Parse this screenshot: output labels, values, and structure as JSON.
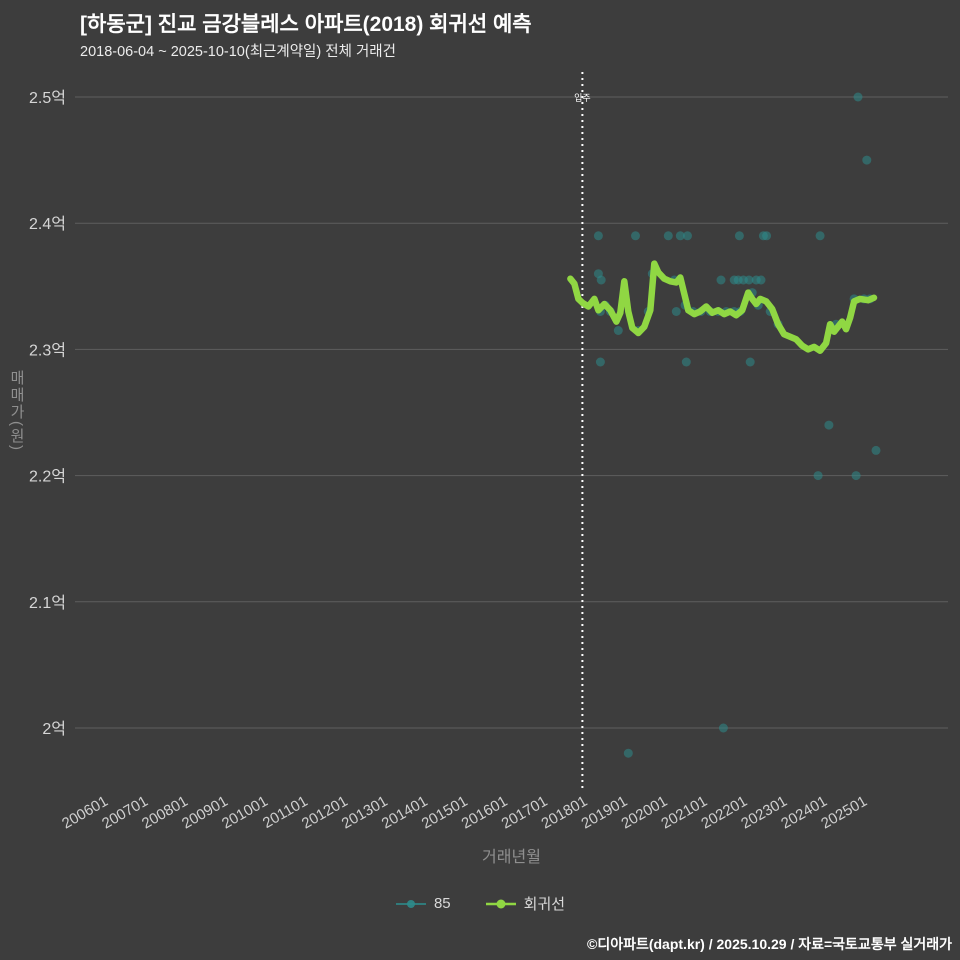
{
  "header": {
    "title": "[하동군] 진교 금강블레스 아파트(2018) 회귀선 예측",
    "subtitle": "2018-06-04 ~ 2025-10-10(최근계약일) 전체 거래건"
  },
  "footer": {
    "copyright": "©디아파트(dapt.kr) / 2025.10.29 / 자료=국토교통부 실거래가"
  },
  "chart_data": {
    "type": "scatter",
    "title": "[하동군] 진교 금강블레스 아파트(2018) 회귀선 예측",
    "subtitle": "2018-06-04 ~ 2025-10-10(최근계약일) 전체 거래건",
    "xlabel": "거래년월",
    "ylabel": "매매가(원)",
    "grid": true,
    "legend_position": "bottom",
    "ylim": [
      1.95,
      2.52
    ],
    "xlim_years": [
      2005.45,
      2027.3
    ],
    "y_ticks": [
      {
        "label": "2.5억",
        "value": 2.5
      },
      {
        "label": "2.4억",
        "value": 2.4
      },
      {
        "label": "2.3억",
        "value": 2.3
      },
      {
        "label": "2.2억",
        "value": 2.2
      },
      {
        "label": "2.1억",
        "value": 2.1
      },
      {
        "label": "2억",
        "value": 2.0
      }
    ],
    "x_ticks": [
      "200601",
      "200701",
      "200801",
      "200901",
      "201001",
      "201101",
      "201201",
      "201301",
      "201401",
      "201501",
      "201601",
      "201701",
      "201801",
      "201901",
      "202001",
      "202101",
      "202201",
      "202301",
      "202401",
      "202501"
    ],
    "marker_line": {
      "label": "입주",
      "year": 2018.15,
      "style": "dotted-vertical",
      "color": "#ffffff"
    },
    "series": [
      {
        "name": "85",
        "type": "scatter",
        "color": "#2e8b8b",
        "opacity": 0.55,
        "points": [
          [
            2025.05,
            2.5
          ],
          [
            2025.27,
            2.45
          ],
          [
            2018.55,
            2.39
          ],
          [
            2019.48,
            2.39
          ],
          [
            2020.3,
            2.39
          ],
          [
            2020.6,
            2.39
          ],
          [
            2020.78,
            2.39
          ],
          [
            2022.08,
            2.39
          ],
          [
            2022.68,
            2.39
          ],
          [
            2022.76,
            2.39
          ],
          [
            2024.1,
            2.39
          ],
          [
            2018.55,
            2.36
          ],
          [
            2018.62,
            2.355
          ],
          [
            2019.9,
            2.36
          ],
          [
            2020.45,
            2.355
          ],
          [
            2021.62,
            2.355
          ],
          [
            2021.95,
            2.355
          ],
          [
            2022.05,
            2.355
          ],
          [
            2022.18,
            2.355
          ],
          [
            2022.32,
            2.355
          ],
          [
            2022.5,
            2.355
          ],
          [
            2022.62,
            2.355
          ],
          [
            2022.4,
            2.345
          ],
          [
            2024.95,
            2.34
          ],
          [
            2025.2,
            2.34
          ],
          [
            2025.35,
            2.34
          ],
          [
            2018.6,
            2.33
          ],
          [
            2018.72,
            2.335
          ],
          [
            2018.85,
            2.33
          ],
          [
            2019.05,
            2.315
          ],
          [
            2019.55,
            2.315
          ],
          [
            2019.8,
            2.33
          ],
          [
            2020.5,
            2.33
          ],
          [
            2020.72,
            2.335
          ],
          [
            2020.92,
            2.33
          ],
          [
            2021.12,
            2.33
          ],
          [
            2021.35,
            2.33
          ],
          [
            2021.55,
            2.33
          ],
          [
            2021.75,
            2.33
          ],
          [
            2021.95,
            2.33
          ],
          [
            2022.1,
            2.33
          ],
          [
            2022.55,
            2.335
          ],
          [
            2022.85,
            2.33
          ],
          [
            2023.05,
            2.32
          ],
          [
            2024.5,
            2.32
          ],
          [
            2018.6,
            2.29
          ],
          [
            2020.75,
            2.29
          ],
          [
            2022.35,
            2.29
          ],
          [
            2024.32,
            2.24
          ],
          [
            2025.5,
            2.22
          ],
          [
            2024.05,
            2.2
          ],
          [
            2025.0,
            2.2
          ],
          [
            2021.68,
            2.0
          ],
          [
            2019.3,
            1.98
          ]
        ]
      },
      {
        "name": "회귀선",
        "type": "line",
        "color": "#90d743",
        "width": 6.5,
        "points": [
          [
            2017.85,
            2.356
          ],
          [
            2017.95,
            2.352
          ],
          [
            2018.05,
            2.34
          ],
          [
            2018.15,
            2.337
          ],
          [
            2018.3,
            2.334
          ],
          [
            2018.45,
            2.34
          ],
          [
            2018.55,
            2.331
          ],
          [
            2018.7,
            2.336
          ],
          [
            2018.85,
            2.331
          ],
          [
            2019.0,
            2.322
          ],
          [
            2019.1,
            2.329
          ],
          [
            2019.2,
            2.354
          ],
          [
            2019.3,
            2.33
          ],
          [
            2019.4,
            2.317
          ],
          [
            2019.55,
            2.313
          ],
          [
            2019.7,
            2.318
          ],
          [
            2019.85,
            2.331
          ],
          [
            2019.95,
            2.368
          ],
          [
            2020.05,
            2.361
          ],
          [
            2020.2,
            2.356
          ],
          [
            2020.35,
            2.354
          ],
          [
            2020.5,
            2.353
          ],
          [
            2020.6,
            2.357
          ],
          [
            2020.7,
            2.344
          ],
          [
            2020.8,
            2.331
          ],
          [
            2020.95,
            2.328
          ],
          [
            2021.1,
            2.33
          ],
          [
            2021.25,
            2.334
          ],
          [
            2021.4,
            2.329
          ],
          [
            2021.55,
            2.331
          ],
          [
            2021.7,
            2.328
          ],
          [
            2021.85,
            2.33
          ],
          [
            2022.0,
            2.327
          ],
          [
            2022.15,
            2.331
          ],
          [
            2022.3,
            2.345
          ],
          [
            2022.4,
            2.34
          ],
          [
            2022.5,
            2.336
          ],
          [
            2022.6,
            2.34
          ],
          [
            2022.75,
            2.338
          ],
          [
            2022.9,
            2.332
          ],
          [
            2023.05,
            2.32
          ],
          [
            2023.2,
            2.312
          ],
          [
            2023.35,
            2.31
          ],
          [
            2023.5,
            2.308
          ],
          [
            2023.65,
            2.303
          ],
          [
            2023.8,
            2.3
          ],
          [
            2023.95,
            2.302
          ],
          [
            2024.1,
            2.299
          ],
          [
            2024.25,
            2.305
          ],
          [
            2024.35,
            2.32
          ],
          [
            2024.45,
            2.314
          ],
          [
            2024.55,
            2.318
          ],
          [
            2024.65,
            2.322
          ],
          [
            2024.75,
            2.316
          ],
          [
            2024.85,
            2.325
          ],
          [
            2024.95,
            2.338
          ],
          [
            2025.1,
            2.34
          ],
          [
            2025.3,
            2.339
          ],
          [
            2025.45,
            2.341
          ]
        ]
      }
    ]
  }
}
